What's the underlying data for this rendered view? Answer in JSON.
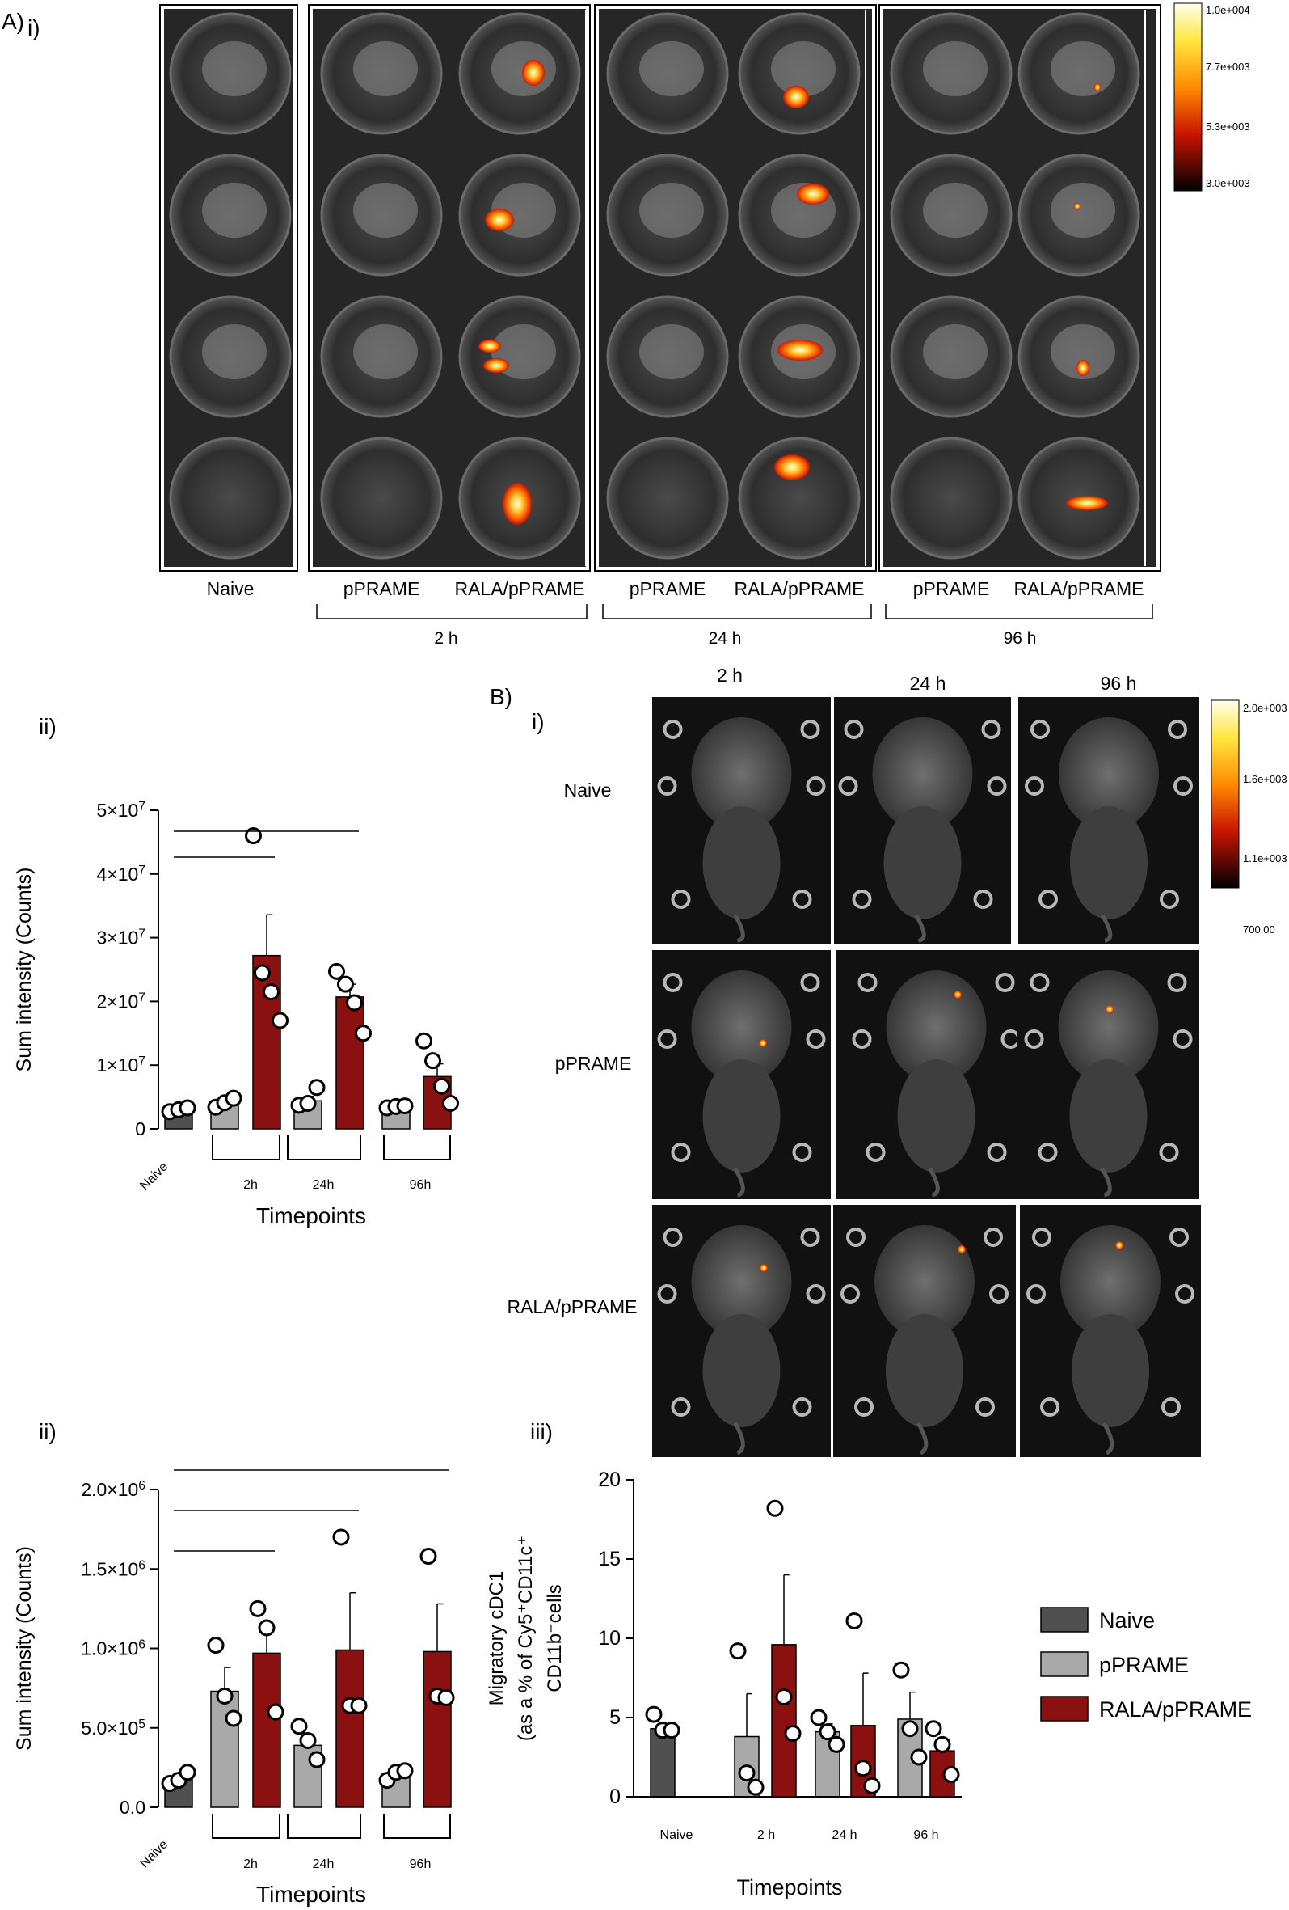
{
  "labels": {
    "panel_A": "A)",
    "panel_A_i": "i)",
    "panel_A_ii": "ii)",
    "panel_B": "B)",
    "panel_B_i": "i)",
    "panel_B_ii": "ii)",
    "panel_B_iii": "iii)"
  },
  "plate_imaging": {
    "column_labels": [
      "Naive",
      "pPRAME",
      "RALA/pPRAME",
      "pPRAME",
      "RALA/pPRAME",
      "pPRAME",
      "RALA/pPRAME"
    ],
    "timepoint_labels": [
      "2 h",
      "24 h",
      "96 h"
    ],
    "colorbar_ticks": [
      "1.0e+004",
      "7.7e+003",
      "5.3e+003",
      "3.0e+003"
    ]
  },
  "mouse_imaging": {
    "column_labels": [
      "2 h",
      "24 h",
      "96 h"
    ],
    "row_labels": [
      "Naive",
      "pPRAME",
      "RALA/pPRAME"
    ],
    "colorbar_ticks": [
      "2.0e+003",
      "1.6e+003",
      "1.1e+003",
      "700.00"
    ]
  },
  "legend": {
    "items": [
      {
        "label": "Naive",
        "color": "#505050"
      },
      {
        "label": "pPRAME",
        "color": "#a9a9a9"
      },
      {
        "label": "RALA/pPRAME",
        "color": "#8b1010"
      }
    ]
  },
  "colors": {
    "naive": "#505050",
    "pprame": "#a9a9a9",
    "rala": "#8b1010"
  },
  "chart_data": [
    {
      "type": "bar",
      "panel": "A ii",
      "xlabel": "Timepoints",
      "ylabel": "Sum intensity (Counts)",
      "categories": [
        "Naive",
        "2h",
        "24h",
        "96h"
      ],
      "ylim": [
        0,
        50000000
      ],
      "yticks": [
        {
          "value": 0,
          "label": "0"
        },
        {
          "value": 10000000,
          "label": "1×10",
          "exp": "7"
        },
        {
          "value": 20000000,
          "label": "2×10",
          "exp": "7"
        },
        {
          "value": 30000000,
          "label": "3×10",
          "exp": "7"
        },
        {
          "value": 40000000,
          "label": "4×10",
          "exp": "7"
        },
        {
          "value": 50000000,
          "label": "5×10",
          "exp": "7"
        }
      ],
      "bars": [
        {
          "group": "Naive",
          "series": "Naive",
          "value": 3000000,
          "error": 200000,
          "points": [
            2700000,
            3000000,
            3300000
          ]
        },
        {
          "group": "2h",
          "series": "pPRAME",
          "value": 4000000,
          "error": 500000,
          "points": [
            3400000,
            4100000,
            4800000
          ]
        },
        {
          "group": "2h",
          "series": "RALA/pPRAME",
          "value": 27200000,
          "error": 6400000,
          "points": [
            46000000,
            24500000,
            21500000,
            17000000
          ]
        },
        {
          "group": "24h",
          "series": "pPRAME",
          "value": 4400000,
          "error": 700000,
          "points": [
            3700000,
            4000000,
            6500000
          ]
        },
        {
          "group": "24h",
          "series": "RALA/pPRAME",
          "value": 20700000,
          "error": 2000000,
          "points": [
            24700000,
            22700000,
            19800000,
            15000000
          ]
        },
        {
          "group": "96h",
          "series": "pPRAME",
          "value": 3400000,
          "error": 200000,
          "points": [
            3300000,
            3500000,
            3600000
          ]
        },
        {
          "group": "96h",
          "series": "RALA/pPRAME",
          "value": 8200000,
          "error": 2000000,
          "points": [
            13800000,
            10700000,
            6700000,
            4000000
          ]
        }
      ],
      "significance_lines": [
        {
          "from": "Naive",
          "to": "2h RALA/pPRAME"
        },
        {
          "from": "Naive",
          "to": "24h RALA/pPRAME"
        }
      ]
    },
    {
      "type": "bar",
      "panel": "B ii",
      "xlabel": "Timepoints",
      "ylabel": "Sum intensity (Counts)",
      "categories": [
        "Naive",
        "2h",
        "24h",
        "96h"
      ],
      "ylim": [
        0,
        2000000
      ],
      "yticks": [
        {
          "value": 0,
          "label": "0.0"
        },
        {
          "value": 500000,
          "label": "5.0×10",
          "exp": "5"
        },
        {
          "value": 1000000,
          "label": "1.0×10",
          "exp": "6"
        },
        {
          "value": 1500000,
          "label": "1.5×10",
          "exp": "6"
        },
        {
          "value": 2000000,
          "label": "2.0×10",
          "exp": "6"
        }
      ],
      "bars": [
        {
          "group": "Naive",
          "series": "Naive",
          "value": 180000,
          "error": 20000,
          "points": [
            150000,
            170000,
            220000
          ]
        },
        {
          "group": "2h",
          "series": "pPRAME",
          "value": 730000,
          "error": 150000,
          "points": [
            1020000,
            700000,
            560000
          ]
        },
        {
          "group": "2h",
          "series": "RALA/pPRAME",
          "value": 970000,
          "error": 190000,
          "points": [
            1250000,
            1130000,
            600000
          ]
        },
        {
          "group": "24h",
          "series": "pPRAME",
          "value": 390000,
          "error": 70000,
          "points": [
            510000,
            420000,
            300000
          ]
        },
        {
          "group": "24h",
          "series": "RALA/pPRAME",
          "value": 990000,
          "error": 360000,
          "points": [
            1700000,
            640000,
            640000
          ]
        },
        {
          "group": "96h",
          "series": "pPRAME",
          "value": 190000,
          "error": 30000,
          "points": [
            170000,
            220000,
            230000
          ]
        },
        {
          "group": "96h",
          "series": "RALA/pPRAME",
          "value": 980000,
          "error": 300000,
          "points": [
            1580000,
            700000,
            690000
          ]
        }
      ],
      "significance_lines": [
        {
          "from": "Naive",
          "to": "2h RALA/pPRAME"
        },
        {
          "from": "Naive",
          "to": "24h RALA/pPRAME"
        },
        {
          "from": "Naive",
          "to": "96h RALA/pPRAME"
        }
      ]
    },
    {
      "type": "bar",
      "panel": "B iii",
      "xlabel": "Timepoints",
      "ylabel_lines": [
        "Migratory cDC1",
        "(as a % of Cy5⁺CD11c⁺",
        "CD11b⁻cells"
      ],
      "categories": [
        "Naive",
        "2 h",
        "24 h",
        "96 h"
      ],
      "ylim": [
        0,
        20
      ],
      "yticks": [
        {
          "value": 0,
          "label": "0"
        },
        {
          "value": 5,
          "label": "5"
        },
        {
          "value": 10,
          "label": "10"
        },
        {
          "value": 15,
          "label": "15"
        },
        {
          "value": 20,
          "label": "20"
        }
      ],
      "bars": [
        {
          "group": "Naive",
          "series": "Naive",
          "value": 4.3,
          "error": 0,
          "points": [
            5.2,
            4.2,
            4.2
          ]
        },
        {
          "group": "2 h",
          "series": "pPRAME",
          "value": 3.8,
          "error": 2.7,
          "points": [
            9.2,
            1.5,
            0.6
          ]
        },
        {
          "group": "2 h",
          "series": "RALA/pPRAME",
          "value": 9.6,
          "error": 4.4,
          "points": [
            18.2,
            6.3,
            4.0
          ]
        },
        {
          "group": "24 h",
          "series": "pPRAME",
          "value": 4.1,
          "error": 0.5,
          "points": [
            5.0,
            4.1,
            3.3
          ]
        },
        {
          "group": "24 h",
          "series": "RALA/pPRAME",
          "value": 4.5,
          "error": 3.3,
          "points": [
            11.1,
            1.8,
            0.7
          ]
        },
        {
          "group": "96 h",
          "series": "pPRAME",
          "value": 4.9,
          "error": 1.7,
          "points": [
            8.0,
            4.3,
            2.5
          ]
        },
        {
          "group": "96 h",
          "series": "RALA/pPRAME",
          "value": 2.9,
          "error": 0.6,
          "points": [
            4.3,
            3.3,
            1.4
          ]
        }
      ]
    }
  ]
}
